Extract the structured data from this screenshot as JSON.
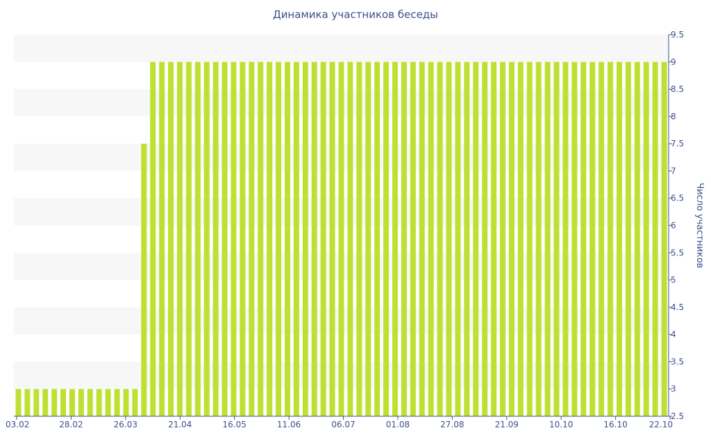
{
  "chart_data": {
    "type": "bar",
    "title": "Динамика участников беседы",
    "ylabel": "Число участников",
    "ylim": [
      2.5,
      9.5
    ],
    "yticks": [
      2.5,
      3,
      3.5,
      4,
      4.5,
      5,
      5.5,
      6,
      6.5,
      7,
      7.5,
      8,
      8.5,
      9,
      9.5
    ],
    "y_axis_position": "right",
    "xtick_labels": [
      "03.02",
      "28.02",
      "26.03",
      "21.04",
      "16.05",
      "11.06",
      "06.07",
      "01.08",
      "27.08",
      "21.09",
      "10.10",
      "16.10",
      "22.10"
    ],
    "bar_color": "#bfe033",
    "band_color": "#f7f7f7",
    "axis_color": "#3d4f8a",
    "values": [
      3,
      3,
      3,
      3,
      3,
      3,
      3,
      3,
      3,
      3,
      3,
      3,
      3,
      3,
      7.5,
      9,
      9,
      9,
      9,
      9,
      9,
      9,
      9,
      9,
      9,
      9,
      9,
      9,
      9,
      9,
      9,
      9,
      9,
      9,
      9,
      9,
      9,
      9,
      9,
      9,
      9,
      9,
      9,
      9,
      9,
      9,
      9,
      9,
      9,
      9,
      9,
      9,
      9,
      9,
      9,
      9,
      9,
      9,
      9,
      9,
      9,
      9,
      9,
      9,
      9,
      9,
      9,
      9,
      9,
      9,
      9,
      9,
      9
    ]
  }
}
